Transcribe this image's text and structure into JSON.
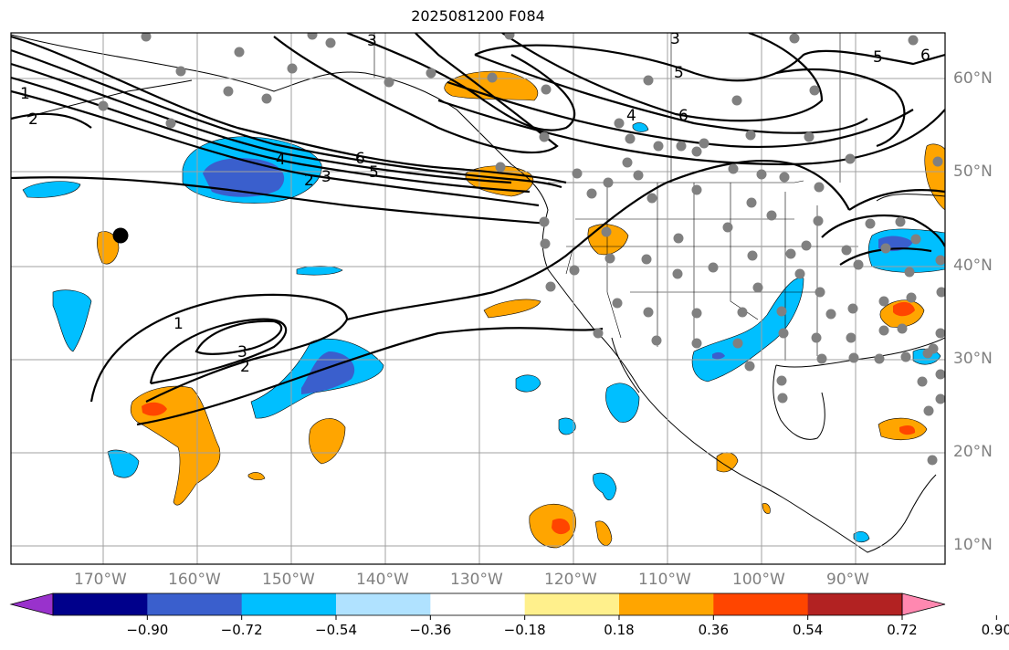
{
  "title": "2025081200 F084",
  "lon_labels": [
    "170°W",
    "160°W",
    "150°W",
    "140°W",
    "130°W",
    "120°W",
    "110°W",
    "100°W",
    "90°W"
  ],
  "lat_labels": [
    "60°N",
    "50°N",
    "40°N",
    "30°N",
    "20°N",
    "10°N"
  ],
  "contour_labels": [
    "1",
    "2",
    "3",
    "4",
    "5",
    "6",
    "1",
    "2",
    "3",
    "3",
    "4",
    "5",
    "6",
    "5",
    "6",
    "6",
    "3",
    "2",
    "1"
  ],
  "colorbar": {
    "ticks": [
      "−0.90",
      "−0.72",
      "−0.54",
      "−0.36",
      "−0.18",
      "0.18",
      "0.36",
      "0.54",
      "0.72",
      "0.90"
    ],
    "colors": [
      "#9932cc",
      "#00008b",
      "#3a5fcd",
      "#00bfff",
      "#b0e2ff",
      "#ffffff",
      "#fff08c",
      "#ffa500",
      "#ff4500",
      "#b22222",
      "#ff88b0"
    ]
  }
}
